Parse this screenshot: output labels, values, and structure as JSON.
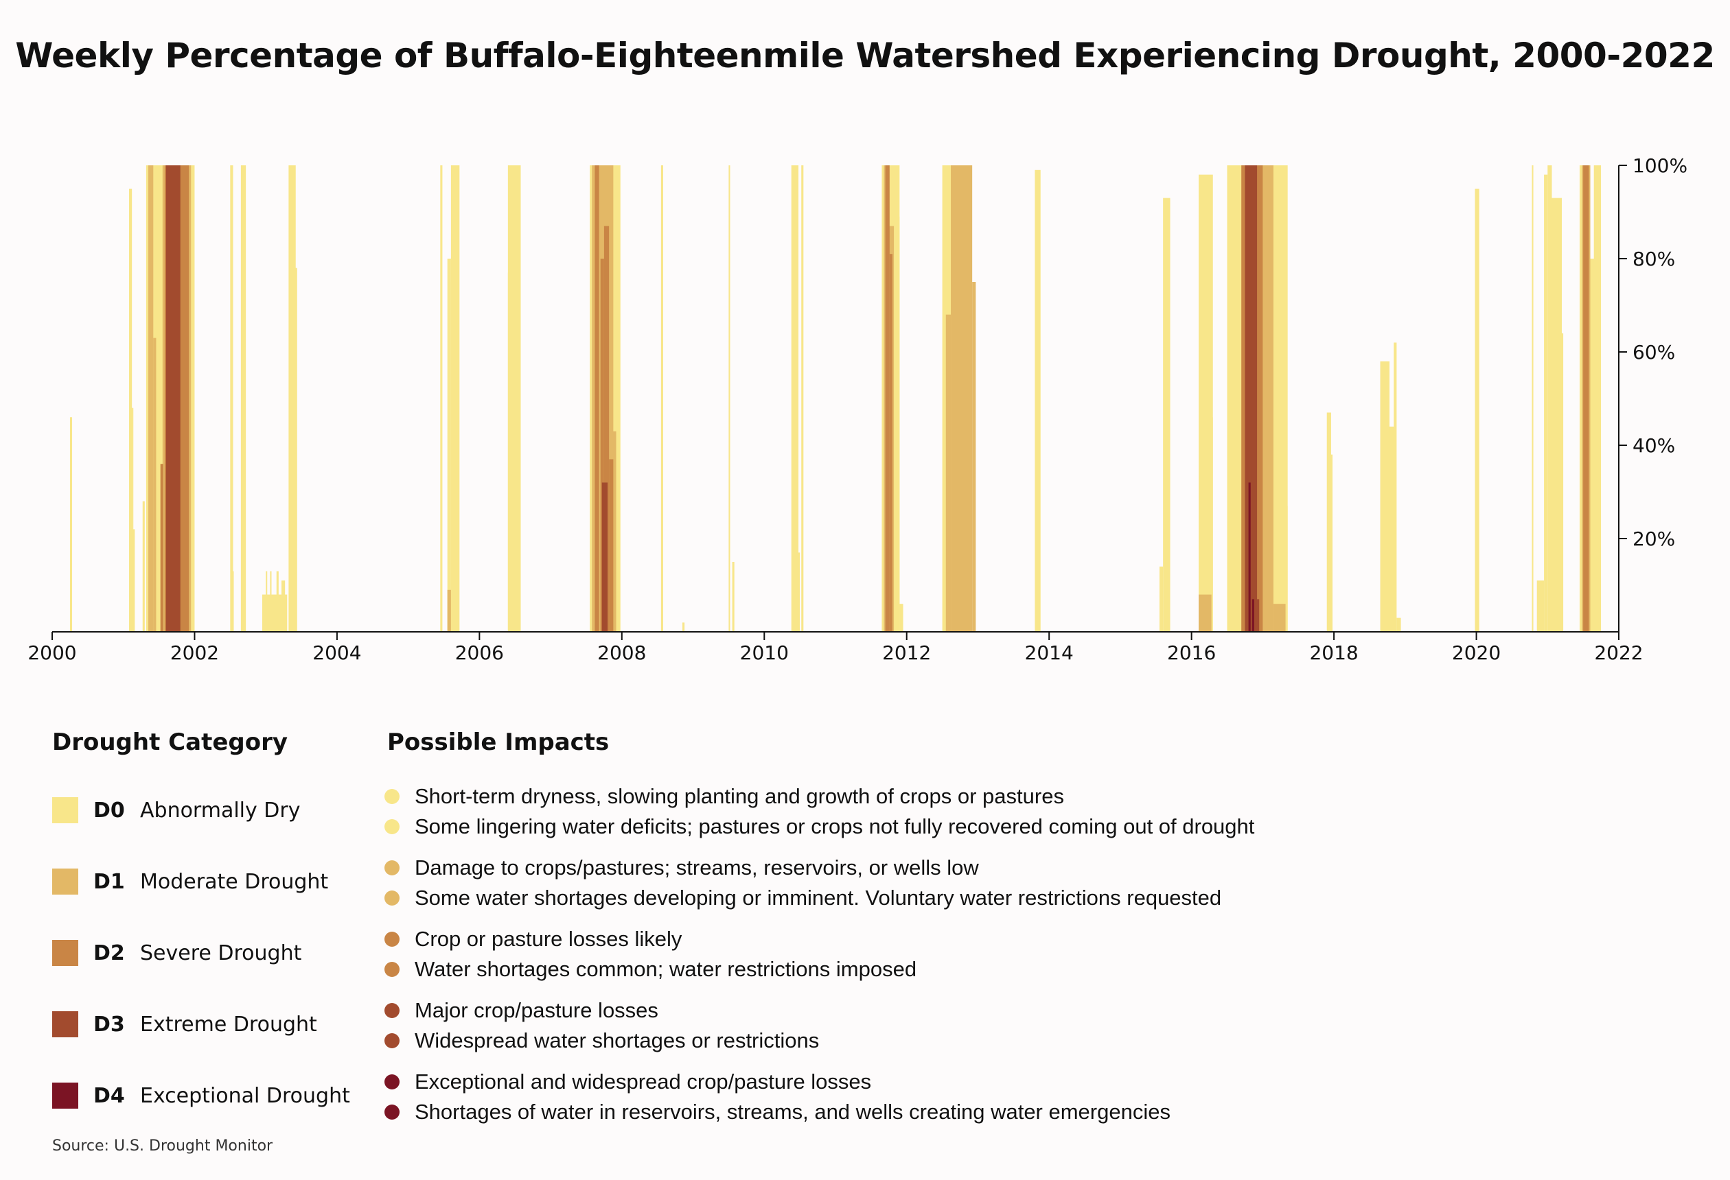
{
  "title": "Weekly Percentage of Buffalo-Eighteenmile Watershed Experiencing Drought, 2000-2022",
  "chart_data": {
    "type": "bar",
    "title": "Weekly Percentage of Buffalo-Eighteenmile Watershed Experiencing Drought, 2000-2022",
    "x_axis": {
      "min": 2000,
      "max": 2022,
      "ticks": [
        "2000",
        "2002",
        "2004",
        "2006",
        "2008",
        "2010",
        "2012",
        "2014",
        "2016",
        "2018",
        "2020",
        "2022"
      ]
    },
    "y_axis": {
      "min": 0,
      "max": 100,
      "ticks": [
        "20%",
        "40%",
        "60%",
        "80%",
        "100%"
      ],
      "position": "right"
    },
    "colors": {
      "D0": "#f8e68a",
      "D1": "#e3b866",
      "D2": "#c98545",
      "D3": "#a24b2e",
      "D4": "#7b1424"
    },
    "series": [
      {
        "name": "D0",
        "bars": [
          [
            2000.25,
            2000.28,
            46
          ],
          [
            2001.08,
            2001.12,
            95
          ],
          [
            2001.1,
            2001.16,
            22
          ],
          [
            2001.12,
            2001.14,
            48
          ],
          [
            2001.27,
            2001.3,
            28
          ],
          [
            2001.32,
            2002.0,
            100
          ],
          [
            2002.5,
            2002.54,
            100
          ],
          [
            2002.52,
            2002.55,
            13
          ],
          [
            2002.65,
            2002.72,
            100
          ],
          [
            2002.95,
            2003.3,
            8
          ],
          [
            2003.0,
            2003.02,
            13
          ],
          [
            2003.06,
            2003.08,
            13
          ],
          [
            2003.15,
            2003.18,
            13
          ],
          [
            2003.22,
            2003.27,
            11
          ],
          [
            2003.32,
            2003.42,
            100
          ],
          [
            2003.38,
            2003.44,
            78
          ],
          [
            2005.45,
            2005.48,
            100
          ],
          [
            2005.55,
            2005.6,
            80
          ],
          [
            2005.6,
            2005.72,
            100
          ],
          [
            2005.6,
            2005.64,
            75
          ],
          [
            2006.4,
            2006.58,
            100
          ],
          [
            2006.4,
            2006.45,
            77
          ],
          [
            2007.55,
            2007.98,
            100
          ],
          [
            2008.55,
            2008.58,
            100
          ],
          [
            2008.85,
            2008.88,
            2
          ],
          [
            2009.5,
            2009.52,
            100
          ],
          [
            2009.55,
            2009.58,
            15
          ],
          [
            2010.38,
            2010.48,
            100
          ],
          [
            2010.4,
            2010.44,
            61
          ],
          [
            2010.45,
            2010.5,
            17
          ],
          [
            2010.52,
            2010.55,
            100
          ],
          [
            2011.65,
            2011.9,
            100
          ],
          [
            2011.85,
            2011.9,
            89
          ],
          [
            2011.9,
            2011.95,
            6
          ],
          [
            2012.5,
            2012.9,
            100
          ],
          [
            2012.55,
            2012.6,
            92
          ],
          [
            2013.8,
            2013.88,
            99
          ],
          [
            2013.82,
            2013.86,
            2
          ],
          [
            2015.55,
            2015.6,
            14
          ],
          [
            2015.6,
            2015.7,
            93
          ],
          [
            2016.1,
            2016.3,
            98
          ],
          [
            2016.25,
            2016.3,
            46
          ],
          [
            2016.5,
            2017.35,
            100
          ],
          [
            2017.3,
            2017.35,
            27
          ],
          [
            2017.9,
            2017.96,
            47
          ],
          [
            2017.92,
            2017.98,
            38
          ],
          [
            2018.65,
            2018.78,
            58
          ],
          [
            2018.76,
            2018.85,
            44
          ],
          [
            2018.84,
            2018.88,
            62
          ],
          [
            2018.88,
            2018.94,
            3
          ],
          [
            2019.98,
            2020.04,
            95
          ],
          [
            2020.78,
            2020.8,
            100
          ],
          [
            2020.85,
            2020.95,
            11
          ],
          [
            2020.95,
            2021.0,
            98
          ],
          [
            2021.0,
            2021.06,
            100
          ],
          [
            2021.05,
            2021.2,
            93
          ],
          [
            2021.15,
            2021.22,
            64
          ],
          [
            2021.45,
            2021.6,
            100
          ],
          [
            2021.6,
            2021.72,
            80
          ],
          [
            2021.65,
            2021.75,
            100
          ]
        ]
      },
      {
        "name": "D1",
        "bars": [
          [
            2001.35,
            2001.42,
            100
          ],
          [
            2001.42,
            2001.46,
            63
          ],
          [
            2001.55,
            2001.95,
            100
          ],
          [
            2005.55,
            2005.6,
            9
          ],
          [
            2007.58,
            2007.88,
            100
          ],
          [
            2007.78,
            2007.92,
            43
          ],
          [
            2011.68,
            2011.75,
            100
          ],
          [
            2011.75,
            2011.82,
            87
          ],
          [
            2012.55,
            2012.62,
            68
          ],
          [
            2012.62,
            2012.92,
            100
          ],
          [
            2012.92,
            2012.97,
            75
          ],
          [
            2016.1,
            2016.28,
            8
          ],
          [
            2016.7,
            2017.15,
            100
          ],
          [
            2017.15,
            2017.32,
            6
          ],
          [
            2021.48,
            2021.6,
            100
          ],
          [
            2021.52,
            2021.6,
            40
          ]
        ]
      },
      {
        "name": "D2",
        "bars": [
          [
            2001.58,
            2001.92,
            100
          ],
          [
            2001.52,
            2001.56,
            36
          ],
          [
            2007.62,
            2007.68,
            100
          ],
          [
            2007.7,
            2007.75,
            80
          ],
          [
            2007.75,
            2007.82,
            87
          ],
          [
            2007.82,
            2007.88,
            37
          ],
          [
            2011.7,
            2011.76,
            100
          ],
          [
            2011.76,
            2011.8,
            81
          ],
          [
            2016.7,
            2017.0,
            100
          ],
          [
            2021.5,
            2021.58,
            100
          ]
        ]
      },
      {
        "name": "D3",
        "bars": [
          [
            2001.6,
            2001.8,
            100
          ],
          [
            2007.72,
            2007.8,
            32
          ],
          [
            2016.75,
            2016.92,
            100
          ],
          [
            2016.9,
            2016.95,
            7
          ]
        ]
      },
      {
        "name": "D4",
        "bars": [
          [
            2016.8,
            2016.83,
            32
          ],
          [
            2016.85,
            2016.88,
            7
          ]
        ]
      }
    ]
  },
  "legend": {
    "category_heading": "Drought Category",
    "impacts_heading": "Possible Impacts",
    "categories": [
      {
        "code": "D0",
        "name": "Abnormally Dry",
        "color": "#f8e68a",
        "impacts": [
          "Short-term dryness, slowing planting and growth of crops or pastures",
          "Some lingering water deficits; pastures or crops not fully recovered coming out of drought"
        ]
      },
      {
        "code": "D1",
        "name": "Moderate Drought",
        "color": "#e3b866",
        "impacts": [
          "Damage to crops/pastures; streams, reservoirs, or wells low",
          "Some water shortages developing or imminent. Voluntary water restrictions requested"
        ]
      },
      {
        "code": "D2",
        "name": "Severe Drought",
        "color": "#c98545",
        "impacts": [
          "Crop or pasture losses likely",
          "Water shortages common; water restrictions imposed"
        ]
      },
      {
        "code": "D3",
        "name": "Extreme Drought",
        "color": "#a24b2e",
        "impacts": [
          "Major crop/pasture losses",
          "Widespread water shortages or restrictions"
        ]
      },
      {
        "code": "D4",
        "name": "Exceptional Drought",
        "color": "#7b1424",
        "impacts": [
          "Exceptional and widespread crop/pasture losses",
          "Shortages of water in reservoirs, streams, and wells creating water emergencies"
        ]
      }
    ]
  },
  "source": "Source: U.S. Drought Monitor"
}
